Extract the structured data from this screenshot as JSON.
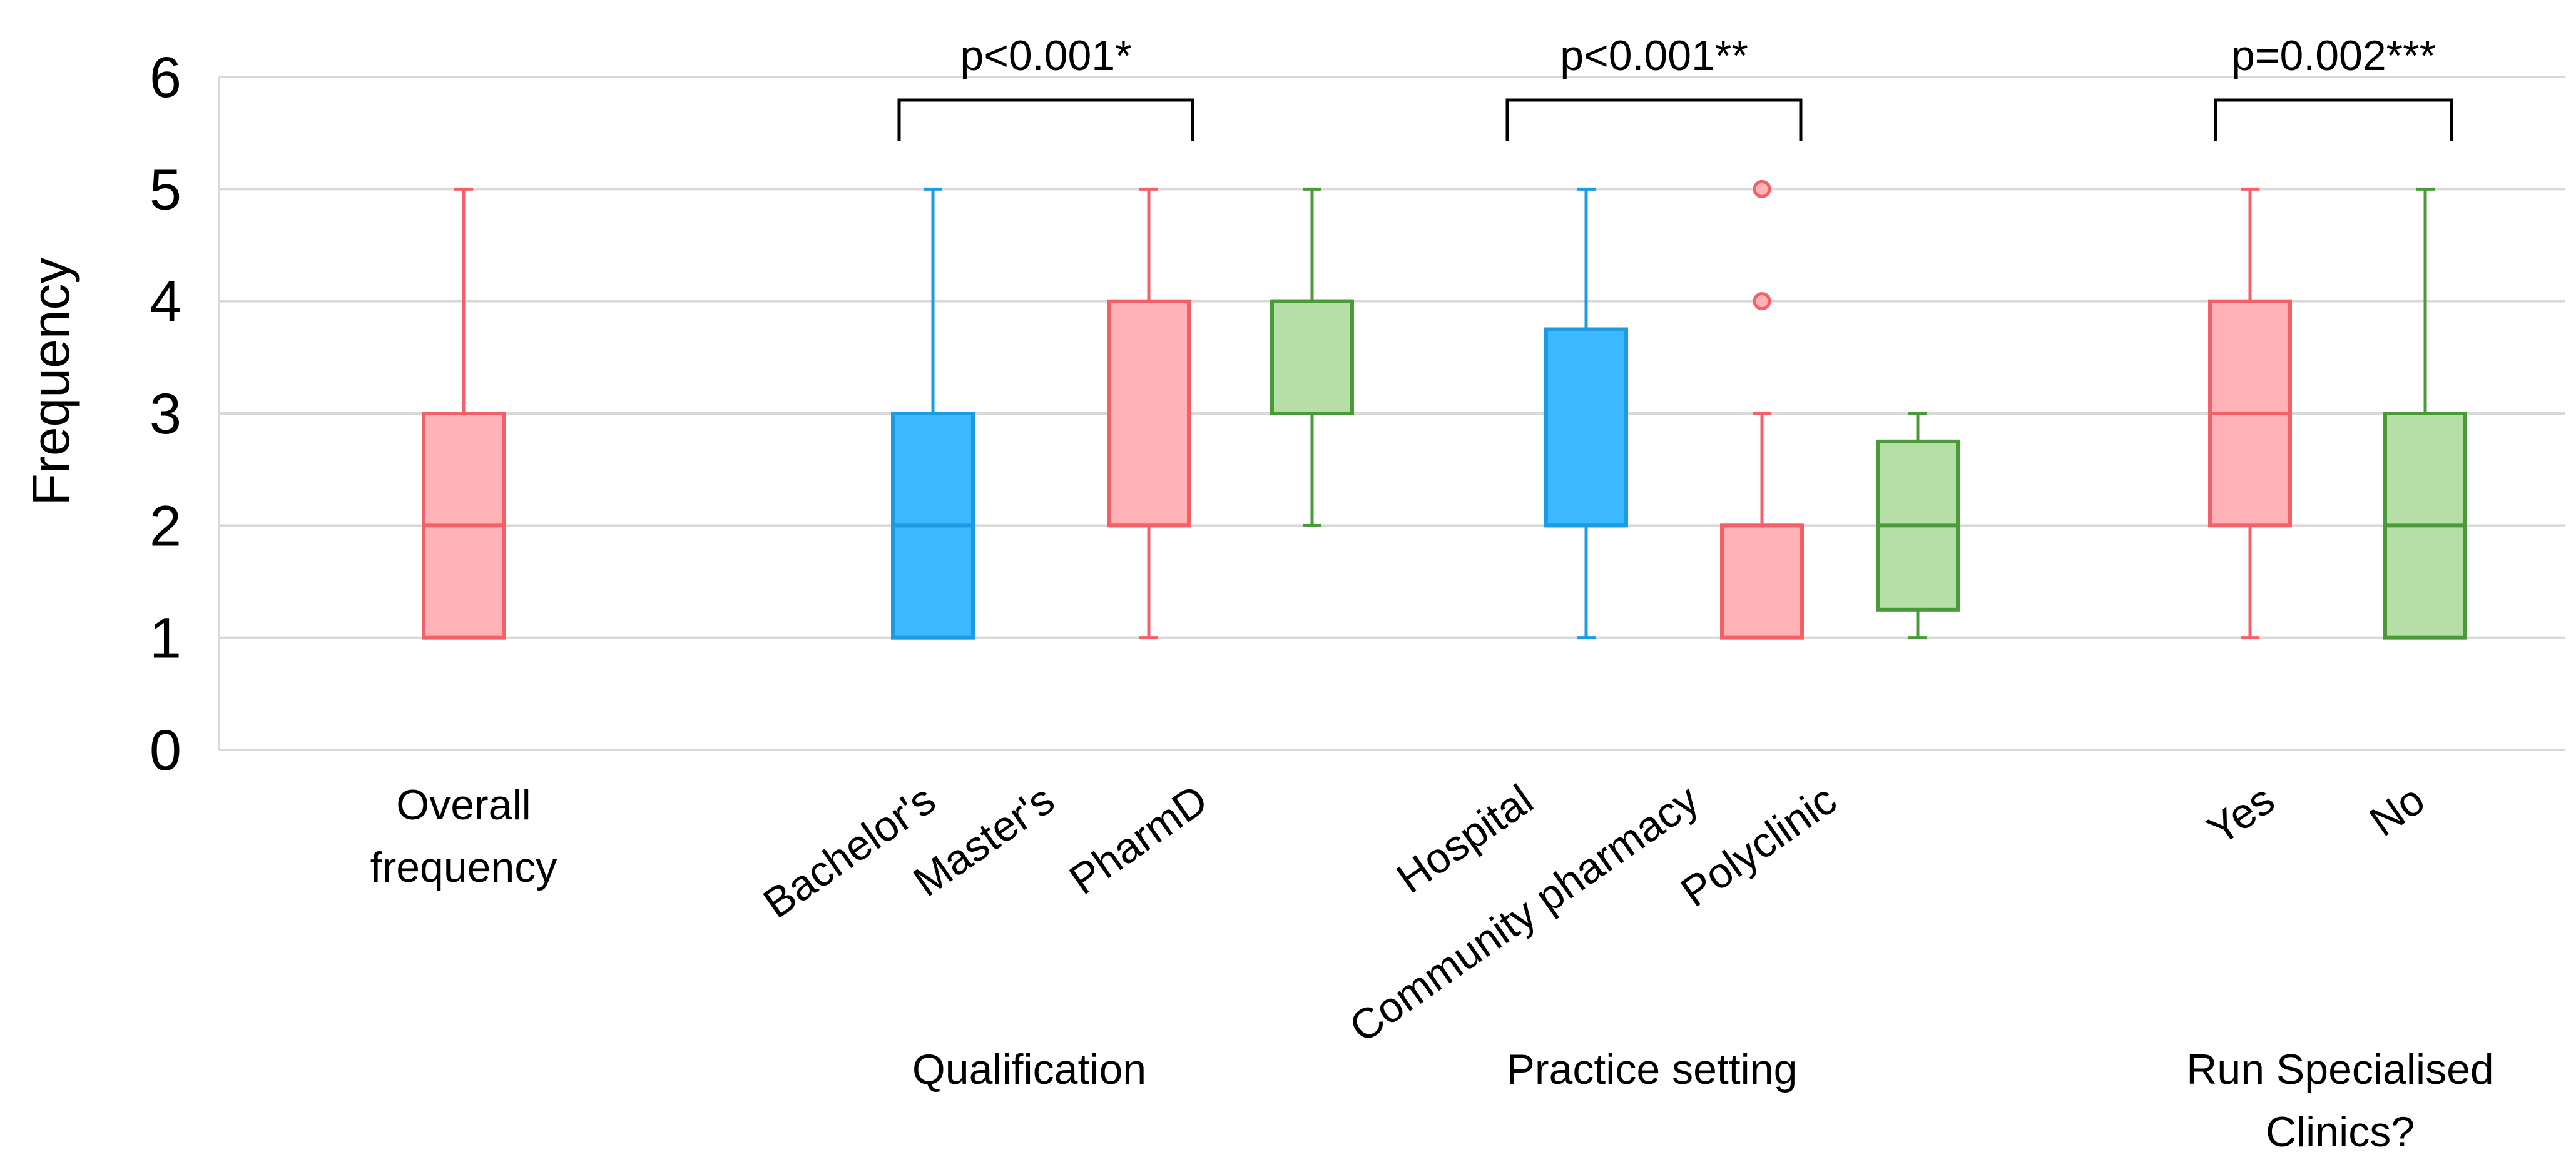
{
  "chart_data": {
    "type": "box",
    "ylabel": "Frequency",
    "ylim": [
      0,
      6
    ],
    "yticks": [
      "0",
      "1",
      "2",
      "3",
      "4",
      "5",
      "6"
    ],
    "grid": true,
    "colors": {
      "red_fill": "#FFB3B6",
      "red_stroke": "#F4606A",
      "blue_fill": "#3BB8FF",
      "blue_stroke": "#1A9BE3",
      "green_fill": "#B6DFA8",
      "green_stroke": "#4A9A3A",
      "grid": "#D9D9D9"
    },
    "boxes": [
      {
        "label": "Overall\nfrequency",
        "color": "red",
        "min": 1,
        "q1": 1,
        "median": 2,
        "q3": 3,
        "max": 5,
        "outliers": []
      },
      {
        "label": "Bachelor's",
        "color": "blue",
        "min": 1,
        "q1": 1,
        "median": 2,
        "q3": 3,
        "max": 5,
        "outliers": []
      },
      {
        "label": "Master's",
        "color": "red",
        "min": 1,
        "q1": 2,
        "median": 2,
        "q3": 4,
        "max": 5,
        "outliers": []
      },
      {
        "label": "PharmD",
        "color": "green",
        "min": 2,
        "q1": 3,
        "median": 4,
        "q3": 4,
        "max": 5,
        "outliers": []
      },
      {
        "label": "Hospital",
        "color": "blue",
        "min": 1,
        "q1": 2,
        "median": 2,
        "q3": 3.75,
        "max": 5,
        "outliers": []
      },
      {
        "label": "Community pharmacy",
        "color": "red",
        "min": 1,
        "q1": 1,
        "median": 2,
        "q3": 2,
        "max": 3,
        "outliers": [
          4,
          5
        ]
      },
      {
        "label": "Polyclinic",
        "color": "green",
        "min": 1,
        "q1": 1.25,
        "median": 2,
        "q3": 2.75,
        "max": 3,
        "outliers": []
      },
      {
        "label": "Yes",
        "color": "red",
        "min": 1,
        "q1": 2,
        "median": 3,
        "q3": 4,
        "max": 5,
        "outliers": []
      },
      {
        "label": "No",
        "color": "green",
        "min": 1,
        "q1": 1,
        "median": 2,
        "q3": 3,
        "max": 5,
        "outliers": []
      }
    ],
    "groups": [
      {
        "label": "Qualification",
        "boxes": [
          1,
          2,
          3
        ]
      },
      {
        "label": "Practice setting",
        "boxes": [
          4,
          5,
          6
        ]
      },
      {
        "label": "Run Specialised\nClinics?",
        "boxes": [
          7,
          8
        ]
      }
    ],
    "annotations": [
      {
        "text": "p<0.001*",
        "from_box": 1,
        "to_box": 3
      },
      {
        "text": "p<0.001**",
        "from_box": 4,
        "to_box": 6
      },
      {
        "text": "p=0.002***",
        "from_box": 7,
        "to_box": 8
      }
    ]
  }
}
